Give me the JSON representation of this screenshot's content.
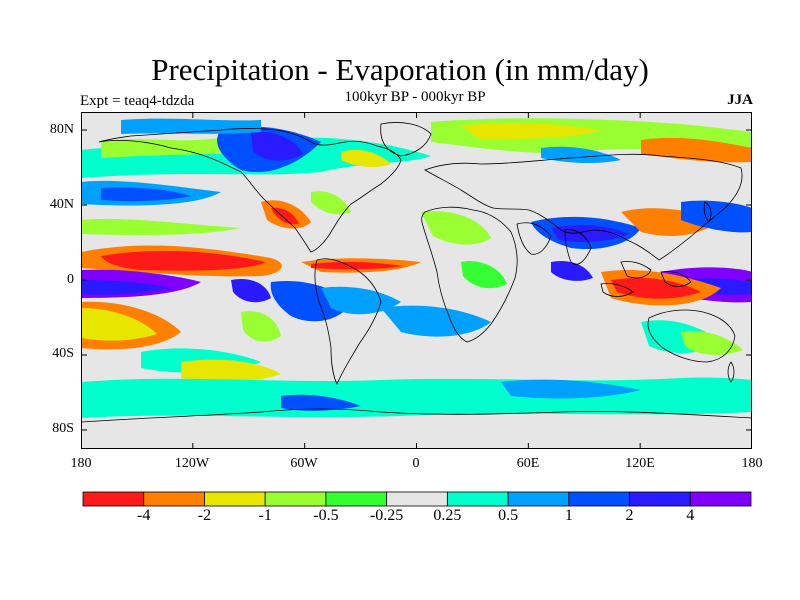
{
  "title": "Precipitation - Evaporation (in mm/day)",
  "subtitle": "100kyr BP - 000kyr BP",
  "experiment": "Expt = teaq4-tdzda",
  "season": "JJA",
  "lat_labels": [
    "80N",
    "40N",
    "0",
    "40S",
    "80S"
  ],
  "lon_labels": [
    "180",
    "120W",
    "60W",
    "0",
    "60E",
    "120E",
    "180"
  ],
  "colorbar": {
    "colors": [
      "#ff1a1a",
      "#ff7f00",
      "#e6e600",
      "#99ff33",
      "#33ff33",
      "#e6e6e6",
      "#00ffcc",
      "#00a0ff",
      "#0050ff",
      "#2a1aff",
      "#8000ff"
    ],
    "labels": [
      "-4",
      "-2",
      "-1",
      "-0.5",
      "-0.25",
      "0.25",
      "0.5",
      "1",
      "2",
      "4"
    ]
  }
}
